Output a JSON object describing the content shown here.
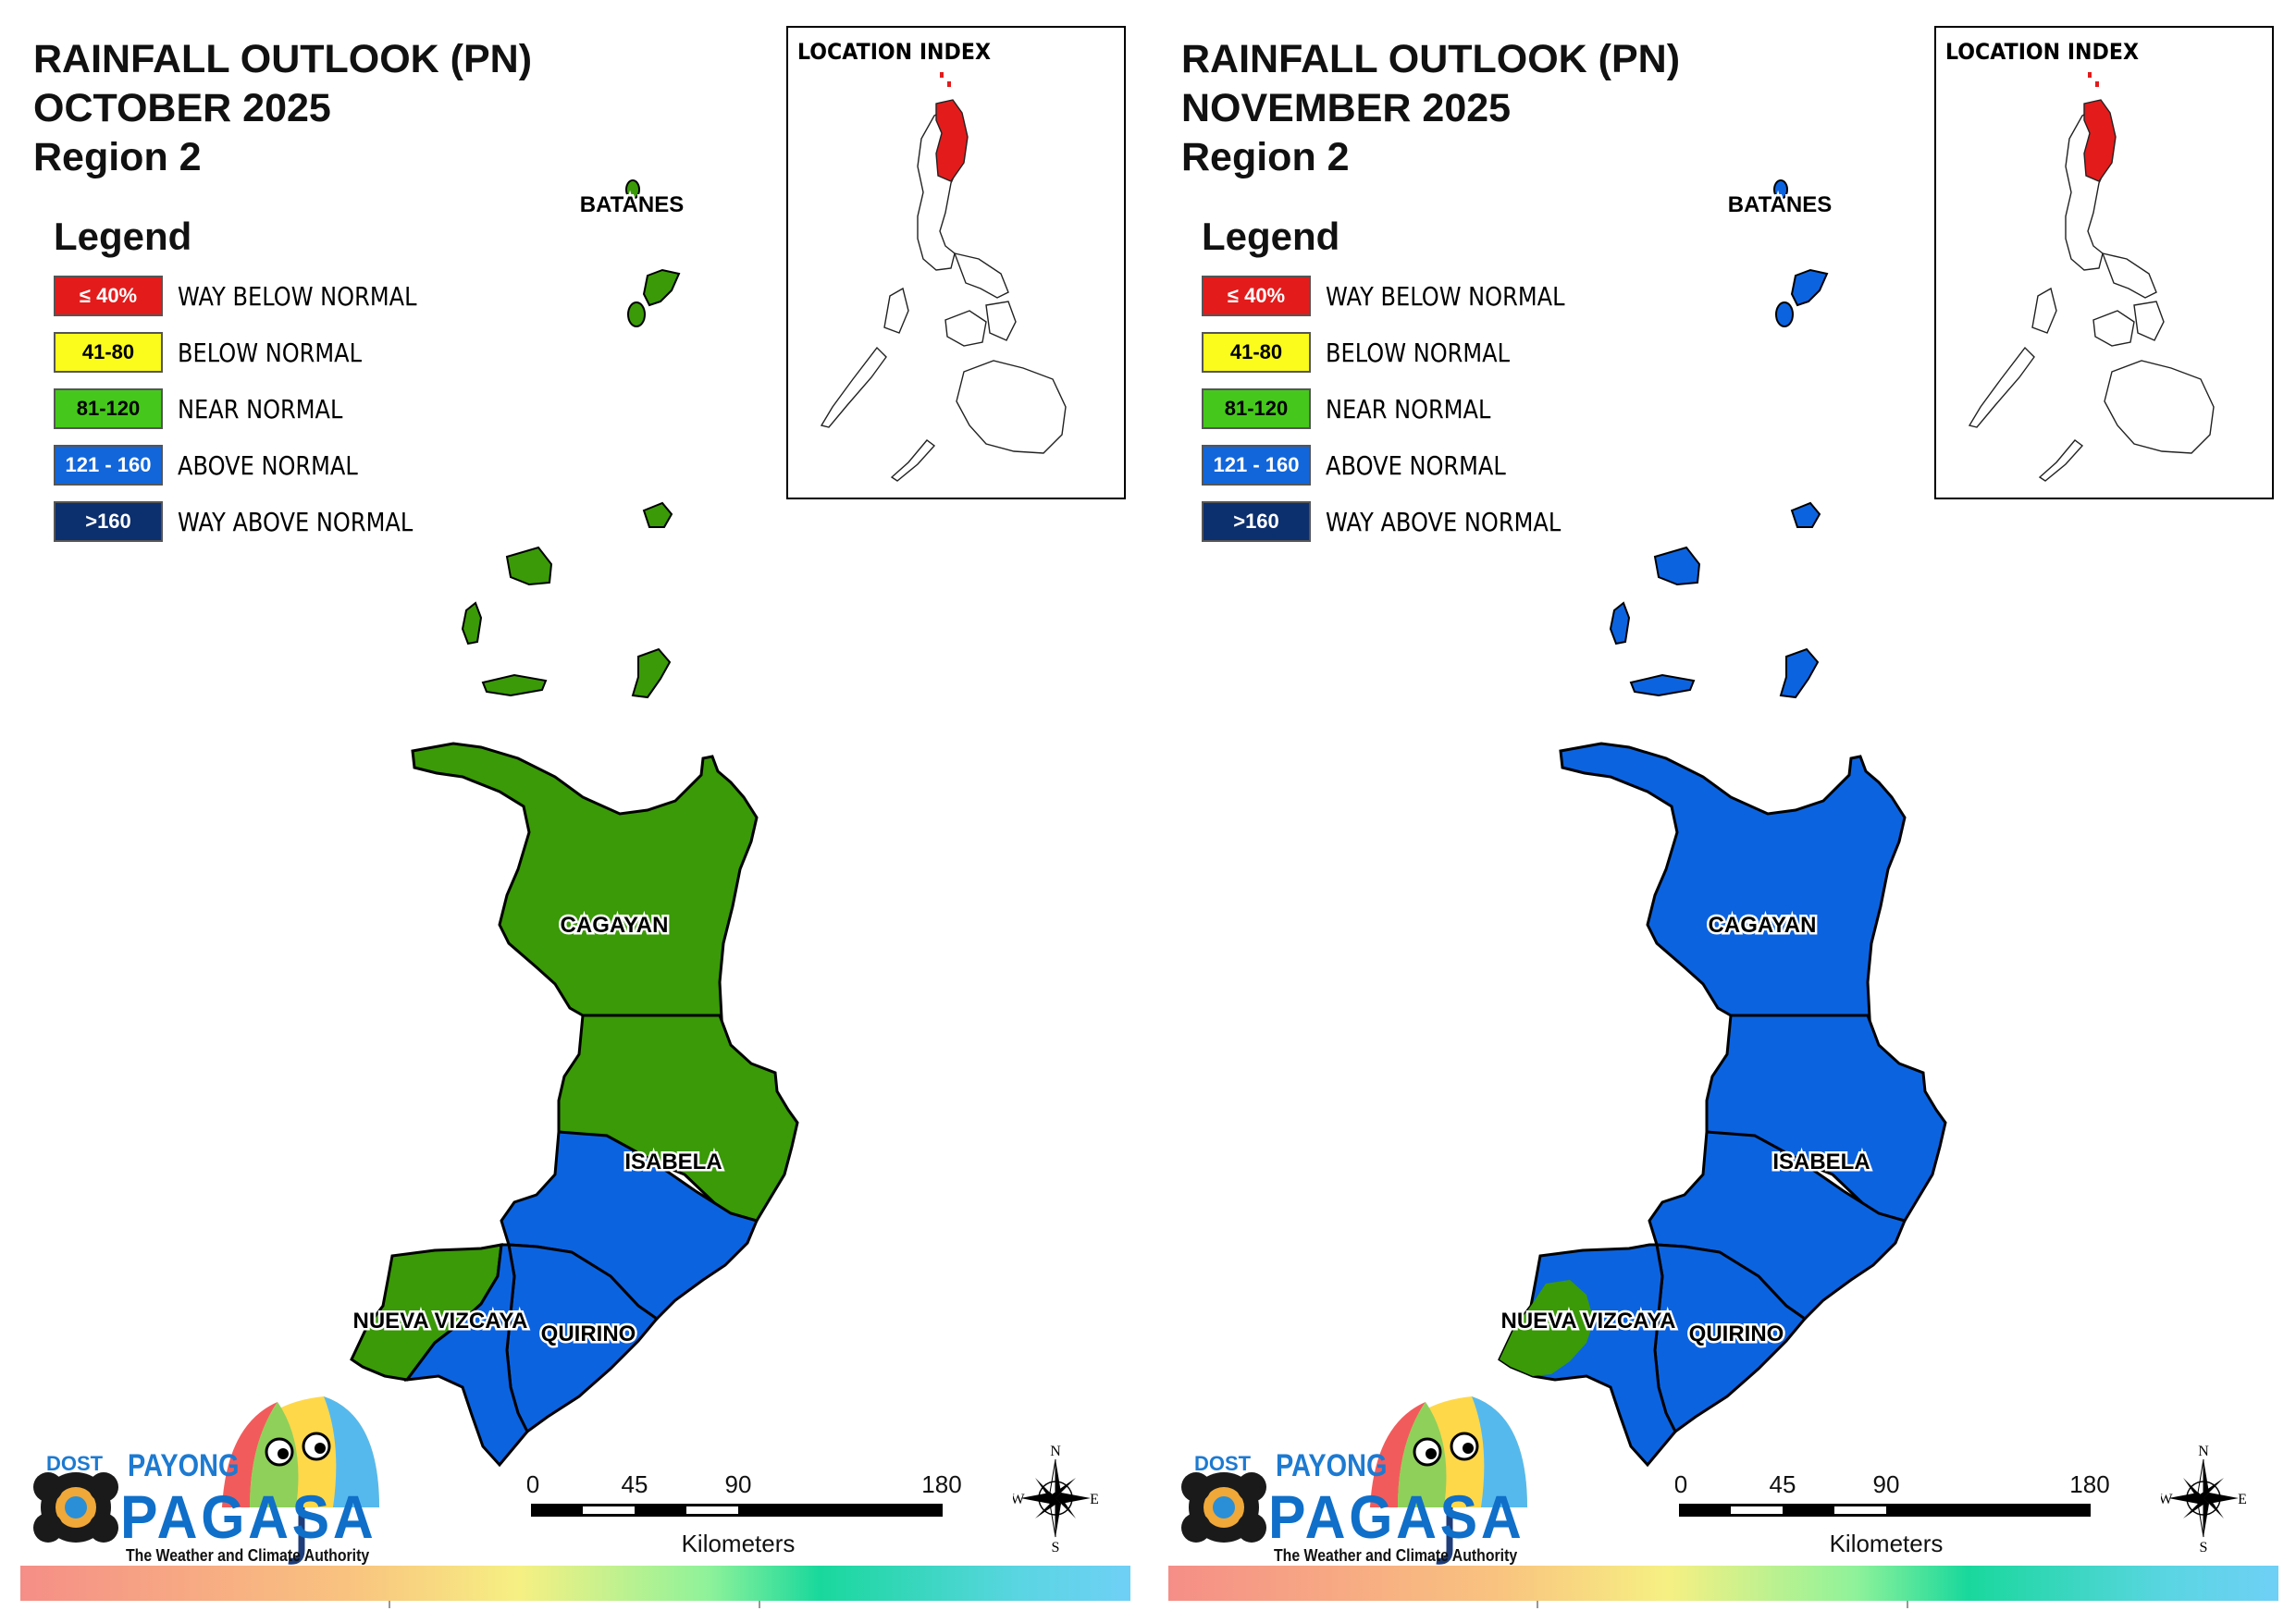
{
  "panels": [
    {
      "title_line1": "RAINFALL OUTLOOK (PN)",
      "title_line2": "OCTOBER 2025",
      "title_line3": "Region 2",
      "province_fill": {
        "batanes": "near-normal",
        "cagayan": "near-normal",
        "isabela_north": "near-normal",
        "isabela_south": "above-normal",
        "quirino": "above-normal",
        "nueva_vizcaya_west": "near-normal",
        "nueva_vizcaya_east": "above-normal"
      }
    },
    {
      "title_line1": "RAINFALL OUTLOOK (PN)",
      "title_line2": "NOVEMBER 2025",
      "title_line3": "Region 2",
      "province_fill": {
        "batanes": "above-normal",
        "cagayan": "above-normal",
        "isabela_north": "above-normal",
        "isabela_south": "above-normal",
        "quirino": "above-normal",
        "nueva_vizcaya_west": "near-normal",
        "nueva_vizcaya_east": "above-normal"
      }
    }
  ],
  "legend": {
    "heading": "Legend",
    "items": [
      {
        "range": "≤ 40%",
        "label": "WAY BELOW NORMAL",
        "color": "#e31b1b",
        "text_color": "#ffffff",
        "key": "way-below-normal"
      },
      {
        "range": "41-80",
        "label": "BELOW NORMAL",
        "color": "#fbfb1c",
        "text_color": "#000000",
        "key": "below-normal"
      },
      {
        "range": "81-120",
        "label": "NEAR NORMAL",
        "color": "#45c81b",
        "text_color": "#000000",
        "key": "near-normal"
      },
      {
        "range": "121 - 160",
        "label": "ABOVE NORMAL",
        "color": "#1266da",
        "text_color": "#ffffff",
        "key": "above-normal"
      },
      {
        "range": ">160",
        "label": "WAY ABOVE NORMAL",
        "color": "#0c2f6e",
        "text_color": "#ffffff",
        "key": "way-above-normal"
      }
    ]
  },
  "map_colors": {
    "near-normal": "#3a9a07",
    "above-normal": "#0c63e0"
  },
  "province_labels": {
    "batanes": "BATANES",
    "cagayan": "CAGAYAN",
    "isabela": "ISABELA",
    "nueva_vizcaya": "NUEVA VIZCAYA",
    "quirino": "QUIRINO"
  },
  "inset": {
    "title": "LOCATION INDEX",
    "highlight_color": "#e31b1b"
  },
  "scale": {
    "ticks": [
      "0",
      "45",
      "90",
      "180"
    ],
    "unit": "Kilometers"
  },
  "compass": {
    "n": "N",
    "s": "S",
    "e": "E",
    "w": "W"
  },
  "logo": {
    "dost": "DOST",
    "payong": "PAYONG",
    "pagasa": "PAGASA",
    "tagline": "The Weather and Climate Authority"
  }
}
